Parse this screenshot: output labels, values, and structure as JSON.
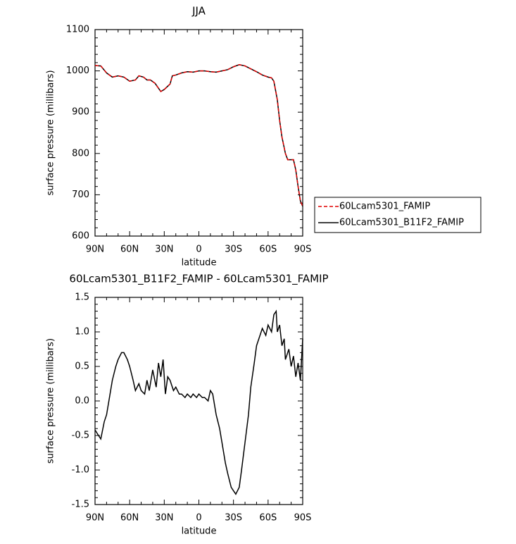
{
  "chart_data": [
    {
      "type": "line",
      "title": "JJA",
      "xlabel": "latitude",
      "ylabel": "surface pressure (millibars)",
      "xlim": [
        90,
        -90
      ],
      "xticks": [
        {
          "value": 90,
          "label": "90N"
        },
        {
          "value": 60,
          "label": "60N"
        },
        {
          "value": 30,
          "label": "30N"
        },
        0,
        {
          "value": -30,
          "label": "30S"
        },
        {
          "value": -60,
          "label": "60S"
        },
        {
          "value": -90,
          "label": "90S"
        }
      ],
      "ylim": [
        600,
        1100
      ],
      "yticks": [
        600,
        700,
        800,
        900,
        1000,
        1100
      ],
      "legend": "outside-right",
      "x": [
        90,
        85,
        80,
        75,
        70,
        65,
        60,
        55,
        52,
        48,
        45,
        42,
        38,
        35,
        33,
        30,
        25,
        23,
        20,
        15,
        10,
        5,
        0,
        -5,
        -10,
        -15,
        -20,
        -25,
        -30,
        -35,
        -40,
        -45,
        -50,
        -55,
        -60,
        -63,
        -65,
        -68,
        -70,
        -72,
        -75,
        -77,
        -80,
        -82,
        -84,
        -86,
        -88,
        -90
      ],
      "series": [
        {
          "name": "60Lcam5301_FAMIP",
          "color": "#e00000",
          "dash": true,
          "values": [
            1013,
            1012,
            995,
            985,
            988,
            985,
            975,
            978,
            988,
            985,
            978,
            978,
            970,
            958,
            950,
            955,
            968,
            988,
            990,
            995,
            998,
            997,
            1000,
            1000,
            998,
            997,
            1000,
            1003,
            1010,
            1015,
            1012,
            1005,
            998,
            990,
            985,
            983,
            975,
            930,
            880,
            840,
            800,
            785,
            785,
            785,
            760,
            720,
            685,
            672
          ]
        },
        {
          "name": "60Lcam5301_B11F2_FAMIP",
          "color": "#000000",
          "dash": false,
          "values": [
            1013,
            1012,
            995,
            985,
            988,
            985,
            975,
            978,
            988,
            985,
            978,
            978,
            970,
            958,
            950,
            955,
            968,
            988,
            990,
            995,
            998,
            997,
            1000,
            1000,
            998,
            997,
            1000,
            1003,
            1010,
            1015,
            1012,
            1005,
            998,
            990,
            985,
            983,
            975,
            930,
            880,
            840,
            800,
            785,
            785,
            785,
            760,
            720,
            685,
            672
          ]
        }
      ]
    },
    {
      "type": "line",
      "title": "60Lcam5301_B11F2_FAMIP - 60Lcam5301_FAMIP",
      "xlabel": "latitude",
      "ylabel": "surface pressure (millibars)",
      "xlim": [
        90,
        -90
      ],
      "xticks": [
        {
          "value": 90,
          "label": "90N"
        },
        {
          "value": 60,
          "label": "60N"
        },
        {
          "value": 30,
          "label": "30N"
        },
        0,
        {
          "value": -30,
          "label": "30S"
        },
        {
          "value": -60,
          "label": "60S"
        },
        {
          "value": -90,
          "label": "90S"
        }
      ],
      "ylim": [
        -1.5,
        1.5
      ],
      "yticks": [
        -1.5,
        {
          "value": -1,
          "label": "-1.0"
        },
        -0.5,
        {
          "value": 0,
          "label": "0.0"
        },
        0.5,
        {
          "value": 1,
          "label": "1.0"
        },
        1.5
      ],
      "x": [
        90,
        87,
        85,
        82,
        80,
        77,
        75,
        72,
        70,
        67,
        65,
        62,
        60,
        57,
        55,
        52,
        50,
        47,
        45,
        43,
        40,
        37,
        35,
        33,
        31,
        29,
        27,
        25,
        22,
        20,
        17,
        15,
        12,
        10,
        7,
        5,
        2,
        0,
        -3,
        -5,
        -8,
        -10,
        -12,
        -15,
        -18,
        -20,
        -23,
        -25,
        -28,
        -30,
        -32,
        -35,
        -37,
        -40,
        -43,
        -45,
        -48,
        -50,
        -53,
        -55,
        -58,
        -60,
        -63,
        -65,
        -67,
        -68,
        -70,
        -72,
        -74,
        -75,
        -78,
        -80,
        -82,
        -84,
        -86,
        -88,
        -90
      ],
      "series": [
        {
          "name": "60Lcam5301_B11F2_FAMIP - 60Lcam5301_FAMIP",
          "color": "#000000",
          "dash": false,
          "values": [
            -0.42,
            -0.5,
            -0.55,
            -0.3,
            -0.2,
            0.1,
            0.3,
            0.5,
            0.6,
            0.7,
            0.7,
            0.6,
            0.5,
            0.3,
            0.15,
            0.25,
            0.15,
            0.1,
            0.3,
            0.15,
            0.45,
            0.2,
            0.55,
            0.35,
            0.6,
            0.1,
            0.35,
            0.3,
            0.15,
            0.2,
            0.1,
            0.1,
            0.05,
            0.1,
            0.05,
            0.1,
            0.05,
            0.1,
            0.05,
            0.05,
            0.0,
            0.15,
            0.1,
            -0.2,
            -0.4,
            -0.6,
            -0.9,
            -1.05,
            -1.25,
            -1.3,
            -1.35,
            -1.25,
            -1.0,
            -0.6,
            -0.2,
            0.2,
            0.55,
            0.8,
            0.95,
            1.05,
            0.95,
            1.1,
            1.0,
            1.25,
            1.3,
            1.0,
            1.1,
            0.8,
            0.9,
            0.6,
            0.75,
            0.5,
            0.65,
            0.35,
            0.55,
            0.3,
            0.9
          ]
        }
      ]
    }
  ]
}
